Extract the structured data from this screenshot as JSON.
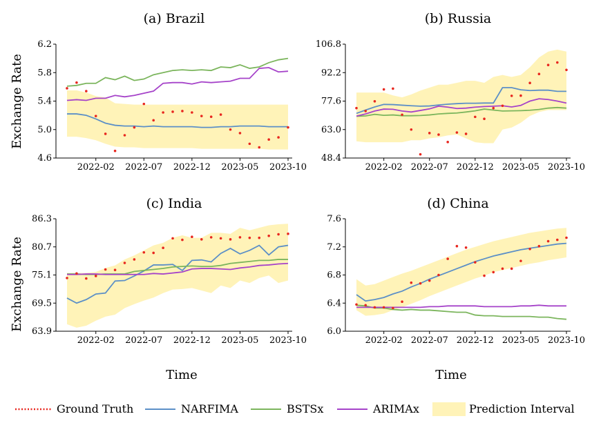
{
  "figure": {
    "ylabel": "Exchange Rate",
    "xlabel": "Time",
    "x_ticks": [
      "2022-02",
      "2022-07",
      "2022-12",
      "2023-05",
      "2023-10"
    ]
  },
  "legend": [
    "Ground Truth",
    "NARFIMA",
    "BSTSx",
    "ARIMAx",
    "Prediction Interval"
  ],
  "colors": {
    "ground_truth": "#e8271f",
    "narfima": "#5b8fc7",
    "bstsx": "#7bb55c",
    "arimax": "#a542c9",
    "interval": "#fff3b8",
    "axis": "#000000"
  },
  "chart_data": [
    {
      "type": "line",
      "title": "(a) Brazil",
      "ylabel": "Exchange Rate",
      "ylim": [
        4.6,
        6.2
      ],
      "y_ticks": [
        "6.2",
        "5.8",
        "5.4",
        "5.0",
        "4.6"
      ],
      "x": [
        "2021-11",
        "2021-12",
        "2022-01",
        "2022-02",
        "2022-03",
        "2022-04",
        "2022-05",
        "2022-06",
        "2022-07",
        "2022-08",
        "2022-09",
        "2022-10",
        "2022-11",
        "2022-12",
        "2023-01",
        "2023-02",
        "2023-03",
        "2023-04",
        "2023-05",
        "2023-06",
        "2023-07",
        "2023-08",
        "2023-09",
        "2023-10"
      ],
      "x_ticks": [
        "2022-02",
        "2022-07",
        "2022-12",
        "2023-05",
        "2023-10"
      ],
      "series": [
        {
          "name": "Ground Truth",
          "style": "dotted",
          "values": [
            5.58,
            5.66,
            5.54,
            5.19,
            4.94,
            4.7,
            4.92,
            5.03,
            5.36,
            5.13,
            5.24,
            5.25,
            5.26,
            5.24,
            5.19,
            5.18,
            5.21,
            5.0,
            4.95,
            4.8,
            4.75,
            4.86,
            4.89,
            5.03
          ]
        },
        {
          "name": "NARFIMA",
          "values": [
            5.22,
            5.22,
            5.2,
            5.15,
            5.09,
            5.06,
            5.05,
            5.05,
            5.04,
            5.05,
            5.04,
            5.04,
            5.04,
            5.04,
            5.03,
            5.03,
            5.04,
            5.04,
            5.05,
            5.05,
            5.05,
            5.04,
            5.04,
            5.04
          ]
        },
        {
          "name": "BSTSx",
          "values": [
            5.61,
            5.62,
            5.65,
            5.65,
            5.73,
            5.7,
            5.75,
            5.69,
            5.71,
            5.77,
            5.8,
            5.83,
            5.84,
            5.83,
            5.84,
            5.83,
            5.88,
            5.87,
            5.91,
            5.86,
            5.88,
            5.94,
            5.98,
            6.0
          ]
        },
        {
          "name": "ARIMAx",
          "values": [
            5.41,
            5.42,
            5.41,
            5.44,
            5.44,
            5.48,
            5.46,
            5.48,
            5.51,
            5.54,
            5.65,
            5.66,
            5.66,
            5.64,
            5.67,
            5.66,
            5.67,
            5.68,
            5.72,
            5.72,
            5.86,
            5.87,
            5.81,
            5.82
          ]
        }
      ],
      "interval": {
        "upper": [
          5.55,
          5.55,
          5.52,
          5.47,
          5.45,
          5.37,
          5.36,
          5.35,
          5.35,
          5.35,
          5.35,
          5.35,
          5.35,
          5.35,
          5.35,
          5.35,
          5.35,
          5.35,
          5.35,
          5.35,
          5.35,
          5.35,
          5.35,
          5.35
        ],
        "lower": [
          4.9,
          4.9,
          4.88,
          4.85,
          4.8,
          4.76,
          4.75,
          4.75,
          4.74,
          4.74,
          4.74,
          4.74,
          4.74,
          4.74,
          4.73,
          4.73,
          4.73,
          4.73,
          4.73,
          4.73,
          4.73,
          4.72,
          4.72,
          4.72
        ]
      }
    },
    {
      "type": "line",
      "title": "(b) Russia",
      "ylim": [
        48.4,
        106.8
      ],
      "y_ticks": [
        "106.8",
        "92.2",
        "77.6",
        "63.0",
        "48.4"
      ],
      "x": [
        "2021-11",
        "2021-12",
        "2022-01",
        "2022-02",
        "2022-03",
        "2022-04",
        "2022-05",
        "2022-06",
        "2022-07",
        "2022-08",
        "2022-09",
        "2022-10",
        "2022-11",
        "2022-12",
        "2023-01",
        "2023-02",
        "2023-03",
        "2023-04",
        "2023-05",
        "2023-06",
        "2023-07",
        "2023-08",
        "2023-09",
        "2023-10"
      ],
      "x_ticks": [
        "2022-02",
        "2022-07",
        "2022-12",
        "2023-05",
        "2023-10"
      ],
      "series": [
        {
          "name": "Ground Truth",
          "style": "dotted",
          "values": [
            74.0,
            72.5,
            77.5,
            83.6,
            84.0,
            70.6,
            63.0,
            50.3,
            61.2,
            60.4,
            56.6,
            61.5,
            60.8,
            69.5,
            68.5,
            74.0,
            75.2,
            80.3,
            80.4,
            86.9,
            91.5,
            96.1,
            97.4,
            93.6
          ]
        },
        {
          "name": "NARFIMA",
          "values": [
            71.3,
            73.0,
            74.6,
            75.9,
            75.8,
            75.5,
            75.2,
            75.0,
            75.1,
            75.6,
            76.0,
            76.3,
            76.5,
            76.5,
            76.6,
            76.6,
            84.5,
            84.5,
            83.4,
            83.0,
            83.2,
            83.2,
            82.6,
            82.6
          ]
        },
        {
          "name": "BSTSx",
          "values": [
            69.8,
            70.0,
            70.8,
            70.3,
            70.5,
            70.1,
            70.1,
            70.2,
            70.5,
            71.0,
            71.3,
            71.5,
            72.0,
            72.6,
            73.5,
            73.0,
            72.5,
            72.6,
            72.7,
            72.9,
            73.3,
            74.0,
            74.3,
            74.0
          ]
        },
        {
          "name": "ARIMAx",
          "values": [
            69.9,
            71.0,
            72.5,
            73.5,
            73.4,
            72.5,
            72.0,
            72.8,
            73.6,
            75.0,
            74.5,
            73.8,
            74.0,
            74.5,
            74.8,
            75.0,
            75.2,
            74.6,
            75.4,
            77.6,
            78.8,
            78.4,
            77.6,
            76.6
          ]
        }
      ],
      "interval": {
        "upper": [
          82.0,
          82.0,
          82.0,
          82.0,
          80.5,
          79.5,
          81.0,
          83.0,
          84.5,
          86.0,
          86.0,
          87.0,
          88.0,
          88.0,
          87.0,
          90.0,
          91.0,
          90.0,
          91.0,
          95.0,
          100.0,
          103.0,
          104.0,
          103.0
        ],
        "lower": [
          57.0,
          56.5,
          56.5,
          56.5,
          56.5,
          56.5,
          57.5,
          57.5,
          58.5,
          59.0,
          60.0,
          60.5,
          58.5,
          56.5,
          56.0,
          56.0,
          63.0,
          64.0,
          66.5,
          70.0,
          72.0,
          73.0,
          73.0,
          73.0
        ]
      }
    },
    {
      "type": "line",
      "title": "(c) India",
      "ylabel": "Exchange Rate",
      "ylim": [
        63.9,
        86.3
      ],
      "y_ticks": [
        "86.3",
        "80.7",
        "75.1",
        "69.5",
        "63.9"
      ],
      "x": [
        "2021-11",
        "2021-12",
        "2022-01",
        "2022-02",
        "2022-03",
        "2022-04",
        "2022-05",
        "2022-06",
        "2022-07",
        "2022-08",
        "2022-09",
        "2022-10",
        "2022-11",
        "2022-12",
        "2023-01",
        "2023-02",
        "2023-03",
        "2023-04",
        "2023-05",
        "2023-06",
        "2023-07",
        "2023-08",
        "2023-09",
        "2023-10"
      ],
      "x_ticks": [
        "2022-02",
        "2022-07",
        "2022-12",
        "2023-05",
        "2023-10"
      ],
      "series": [
        {
          "name": "Ground Truth",
          "style": "dotted",
          "values": [
            74.5,
            75.4,
            74.4,
            74.9,
            76.2,
            76.1,
            77.5,
            78.2,
            79.6,
            79.5,
            80.5,
            82.4,
            82.1,
            82.7,
            82.2,
            82.6,
            82.4,
            82.2,
            82.6,
            82.5,
            82.5,
            82.9,
            83.2,
            83.3
          ]
        },
        {
          "name": "NARFIMA",
          "values": [
            70.5,
            69.5,
            70.2,
            71.3,
            71.5,
            73.9,
            74.0,
            74.9,
            75.9,
            77.1,
            77.1,
            77.2,
            76.0,
            78.0,
            78.1,
            77.7,
            79.4,
            80.4,
            79.3,
            80.0,
            81.0,
            79.1,
            80.7,
            81.0
          ]
        },
        {
          "name": "BSTSx",
          "values": [
            75.3,
            75.3,
            75.2,
            75.2,
            75.3,
            75.3,
            75.3,
            75.8,
            76.0,
            76.2,
            76.4,
            76.7,
            76.8,
            76.9,
            76.8,
            76.8,
            77.0,
            77.4,
            77.6,
            77.8,
            78.0,
            78.0,
            78.2,
            78.2
          ]
        },
        {
          "name": "ARIMAx",
          "values": [
            75.2,
            75.2,
            75.3,
            75.3,
            75.2,
            75.2,
            75.2,
            75.2,
            75.2,
            75.4,
            75.3,
            75.5,
            75.7,
            76.3,
            76.4,
            76.4,
            76.3,
            76.2,
            76.5,
            76.7,
            77.0,
            77.1,
            77.3,
            77.4
          ]
        }
      ],
      "interval": {
        "upper": [
          75.5,
          75.5,
          75.5,
          75.7,
          76.5,
          77.0,
          78.2,
          79.0,
          80.0,
          81.0,
          81.5,
          82.5,
          83.0,
          82.5,
          82.5,
          83.5,
          83.5,
          83.3,
          84.5,
          84.0,
          84.5,
          85.0,
          85.2,
          85.3
        ]
      },
      "interval_lower_note": null
    },
    {
      "type": "line",
      "title": "(d) China",
      "ylim": [
        6.0,
        7.6
      ],
      "y_ticks": [
        "7.6",
        "7.2",
        "6.8",
        "6.4",
        "6.0"
      ],
      "x": [
        "2021-11",
        "2021-12",
        "2022-01",
        "2022-02",
        "2022-03",
        "2022-04",
        "2022-05",
        "2022-06",
        "2022-07",
        "2022-08",
        "2022-09",
        "2022-10",
        "2022-11",
        "2022-12",
        "2023-01",
        "2023-02",
        "2023-03",
        "2023-04",
        "2023-05",
        "2023-06",
        "2023-07",
        "2023-08",
        "2023-09",
        "2023-10"
      ],
      "x_ticks": [
        "2022-02",
        "2022-07",
        "2022-12",
        "2023-05",
        "2023-10"
      ],
      "series": [
        {
          "name": "Ground Truth",
          "style": "dotted",
          "values": [
            6.38,
            6.37,
            6.34,
            6.34,
            6.33,
            6.42,
            6.69,
            6.68,
            6.72,
            6.8,
            7.03,
            7.21,
            7.19,
            6.98,
            6.79,
            6.84,
            6.89,
            6.89,
            7.0,
            7.17,
            7.21,
            7.28,
            7.3,
            7.33
          ]
        },
        {
          "name": "NARFIMA",
          "values": [
            6.52,
            6.43,
            6.45,
            6.48,
            6.53,
            6.57,
            6.63,
            6.68,
            6.74,
            6.79,
            6.84,
            6.89,
            6.94,
            6.99,
            7.03,
            7.07,
            7.1,
            7.13,
            7.16,
            7.18,
            7.2,
            7.22,
            7.24,
            7.25
          ]
        },
        {
          "name": "BSTSx",
          "values": [
            6.37,
            6.36,
            6.33,
            6.33,
            6.31,
            6.3,
            6.31,
            6.3,
            6.3,
            6.29,
            6.28,
            6.27,
            6.27,
            6.23,
            6.22,
            6.22,
            6.21,
            6.21,
            6.21,
            6.21,
            6.2,
            6.2,
            6.18,
            6.17
          ]
        },
        {
          "name": "ARIMAx",
          "values": [
            6.34,
            6.34,
            6.34,
            6.34,
            6.34,
            6.34,
            6.34,
            6.34,
            6.35,
            6.35,
            6.36,
            6.36,
            6.36,
            6.36,
            6.35,
            6.35,
            6.35,
            6.35,
            6.36,
            6.36,
            6.37,
            6.36,
            6.36,
            6.36
          ]
        }
      ],
      "interval": {
        "upper": [
          6.74,
          6.65,
          6.67,
          6.72,
          6.77,
          6.82,
          6.86,
          6.91,
          6.96,
          7.01,
          7.06,
          7.11,
          7.16,
          7.2,
          7.24,
          7.28,
          7.31,
          7.34,
          7.37,
          7.4,
          7.42,
          7.44,
          7.46,
          7.47
        ],
        "lower": [
          6.3,
          6.22,
          6.23,
          6.25,
          6.3,
          6.34,
          6.39,
          6.44,
          6.5,
          6.55,
          6.6,
          6.65,
          6.7,
          6.75,
          6.79,
          6.84,
          6.87,
          6.9,
          6.93,
          6.96,
          6.98,
          7.01,
          7.03,
          7.05
        ]
      }
    }
  ]
}
